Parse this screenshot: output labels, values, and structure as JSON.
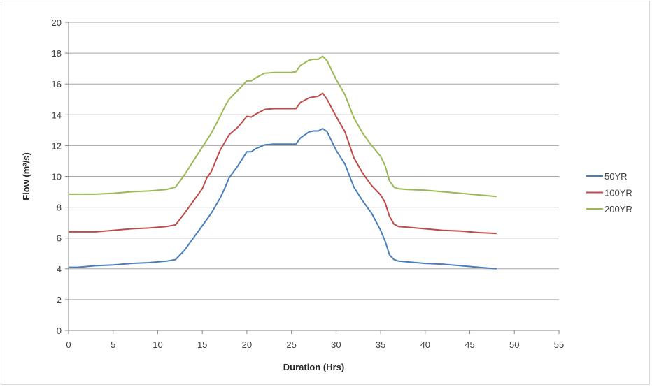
{
  "chart_data": {
    "type": "line",
    "xlabel": "Duration (Hrs)",
    "ylabel": "Flow (m³/s)",
    "xlim": [
      0,
      55
    ],
    "ylim": [
      0,
      20
    ],
    "xticks": [
      0,
      5,
      10,
      15,
      20,
      25,
      30,
      35,
      40,
      45,
      50,
      55
    ],
    "yticks": [
      0,
      2,
      4,
      6,
      8,
      10,
      12,
      14,
      16,
      18,
      20
    ],
    "grid": "horizontal",
    "legend": "right",
    "series": [
      {
        "name": "50YR",
        "color": "#4a7ebb",
        "x": [
          0,
          1,
          3,
          5,
          7,
          9,
          11,
          12,
          13,
          14,
          15,
          16,
          17,
          17.5,
          18,
          19,
          20,
          20.5,
          21,
          22,
          23,
          24,
          25,
          25.5,
          26,
          27,
          27.5,
          28,
          28.5,
          29,
          30,
          31,
          32,
          33,
          34,
          35,
          35.5,
          36,
          36.5,
          37,
          38,
          40,
          42,
          44,
          46,
          48
        ],
        "y": [
          4.1,
          4.1,
          4.2,
          4.25,
          4.35,
          4.4,
          4.5,
          4.6,
          5.2,
          6.0,
          6.8,
          7.6,
          8.6,
          9.2,
          9.9,
          10.7,
          11.6,
          11.6,
          11.8,
          12.05,
          12.1,
          12.1,
          12.1,
          12.1,
          12.5,
          12.9,
          12.95,
          12.95,
          13.1,
          12.9,
          11.7,
          10.8,
          9.3,
          8.4,
          7.6,
          6.5,
          5.8,
          4.9,
          4.6,
          4.5,
          4.45,
          4.35,
          4.3,
          4.2,
          4.1,
          4.0
        ]
      },
      {
        "name": "100YR",
        "color": "#be4b48",
        "x": [
          0,
          1,
          3,
          5,
          7,
          9,
          11,
          12,
          13,
          14,
          15,
          15.5,
          16,
          17,
          18,
          19,
          20,
          20.5,
          21,
          22,
          23,
          24,
          25,
          25.5,
          26,
          27,
          27.5,
          28,
          28.5,
          29,
          30,
          31,
          32,
          33,
          34,
          35,
          35.5,
          36,
          36.5,
          37,
          38,
          40,
          42,
          44,
          46,
          48
        ],
        "y": [
          6.4,
          6.4,
          6.4,
          6.5,
          6.6,
          6.65,
          6.75,
          6.85,
          7.6,
          8.4,
          9.2,
          9.9,
          10.3,
          11.7,
          12.7,
          13.2,
          13.9,
          13.85,
          14.05,
          14.35,
          14.4,
          14.4,
          14.4,
          14.4,
          14.8,
          15.1,
          15.15,
          15.2,
          15.4,
          15.0,
          13.9,
          12.9,
          11.2,
          10.2,
          9.4,
          8.8,
          8.3,
          7.4,
          6.9,
          6.75,
          6.7,
          6.6,
          6.5,
          6.45,
          6.35,
          6.3
        ]
      },
      {
        "name": "200YR",
        "color": "#98b954",
        "x": [
          0,
          1,
          3,
          5,
          7,
          9,
          11,
          12,
          13,
          14,
          15,
          16,
          17,
          17.5,
          18,
          19,
          20,
          20.5,
          21,
          22,
          23,
          24,
          25,
          25.5,
          26,
          27,
          27.5,
          28,
          28.5,
          29,
          30,
          31,
          32,
          33,
          34,
          35,
          35.5,
          36,
          36.5,
          37,
          38,
          40,
          42,
          44,
          46,
          48
        ],
        "y": [
          8.85,
          8.85,
          8.85,
          8.9,
          9.0,
          9.05,
          9.15,
          9.3,
          10.1,
          11.0,
          11.9,
          12.8,
          13.9,
          14.5,
          15.0,
          15.6,
          16.2,
          16.2,
          16.4,
          16.7,
          16.75,
          16.75,
          16.75,
          16.8,
          17.2,
          17.55,
          17.6,
          17.6,
          17.8,
          17.5,
          16.3,
          15.3,
          13.8,
          12.8,
          12.0,
          11.3,
          10.7,
          9.7,
          9.3,
          9.2,
          9.15,
          9.1,
          9.0,
          8.9,
          8.8,
          8.7
        ]
      }
    ]
  }
}
